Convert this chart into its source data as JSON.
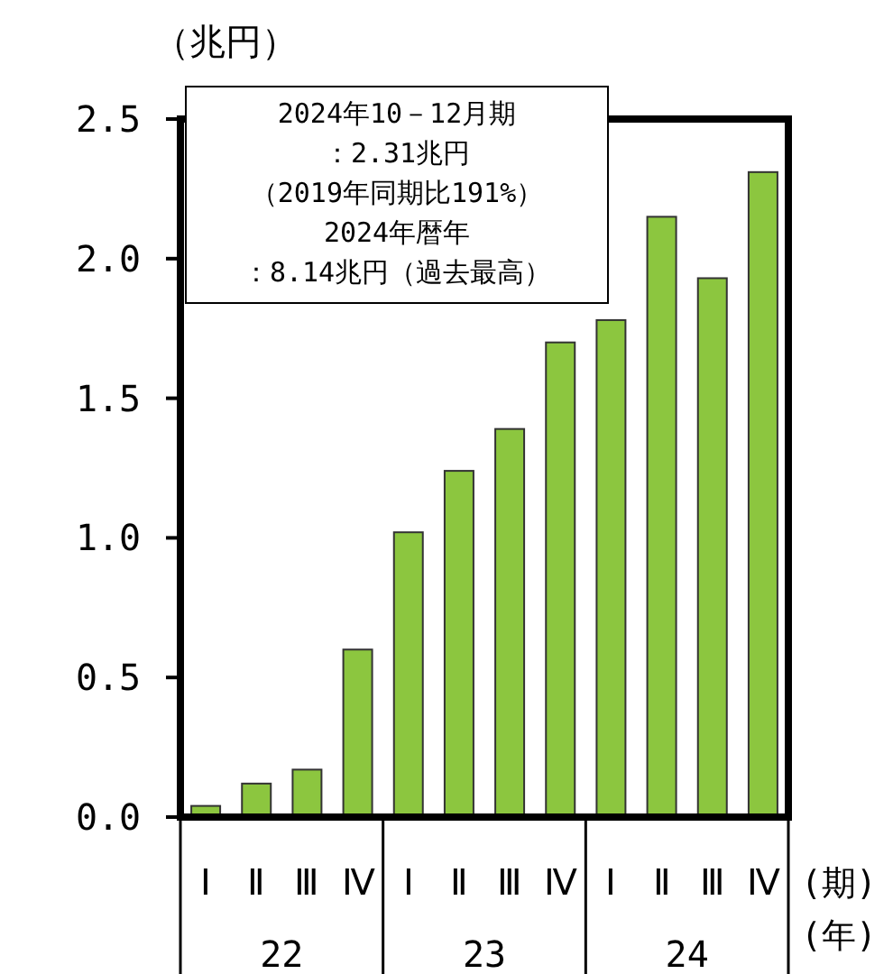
{
  "chart_data": {
    "type": "bar",
    "ylabel": "（兆円）",
    "xlabel": "(期)",
    "categories": [
      "Ⅰ",
      "Ⅱ",
      "Ⅲ",
      "Ⅳ",
      "Ⅰ",
      "Ⅱ",
      "Ⅲ",
      "Ⅳ",
      "Ⅰ",
      "Ⅱ",
      "Ⅲ",
      "Ⅳ"
    ],
    "values": [
      0.04,
      0.12,
      0.17,
      0.6,
      1.02,
      1.24,
      1.39,
      1.7,
      1.78,
      2.15,
      1.93,
      2.31
    ],
    "color": "#8cc63f",
    "ylim": [
      0,
      2.5
    ],
    "yticks": [
      {
        "value": 0,
        "label": "0.0"
      },
      {
        "value": 0.5,
        "label": "0.5"
      },
      {
        "value": 1,
        "label": "1.0"
      },
      {
        "value": 1.5,
        "label": "1.5"
      },
      {
        "value": 2,
        "label": "2.0"
      },
      {
        "value": 2.5,
        "label": "2.5"
      }
    ],
    "annotations": [
      "2024年10－12月期",
      "：2.31兆円",
      "（2019年同期比191%）",
      "2024年暦年",
      "：8.14兆円（過去最高）",
      "22",
      "23",
      "24",
      "(年)"
    ]
  }
}
